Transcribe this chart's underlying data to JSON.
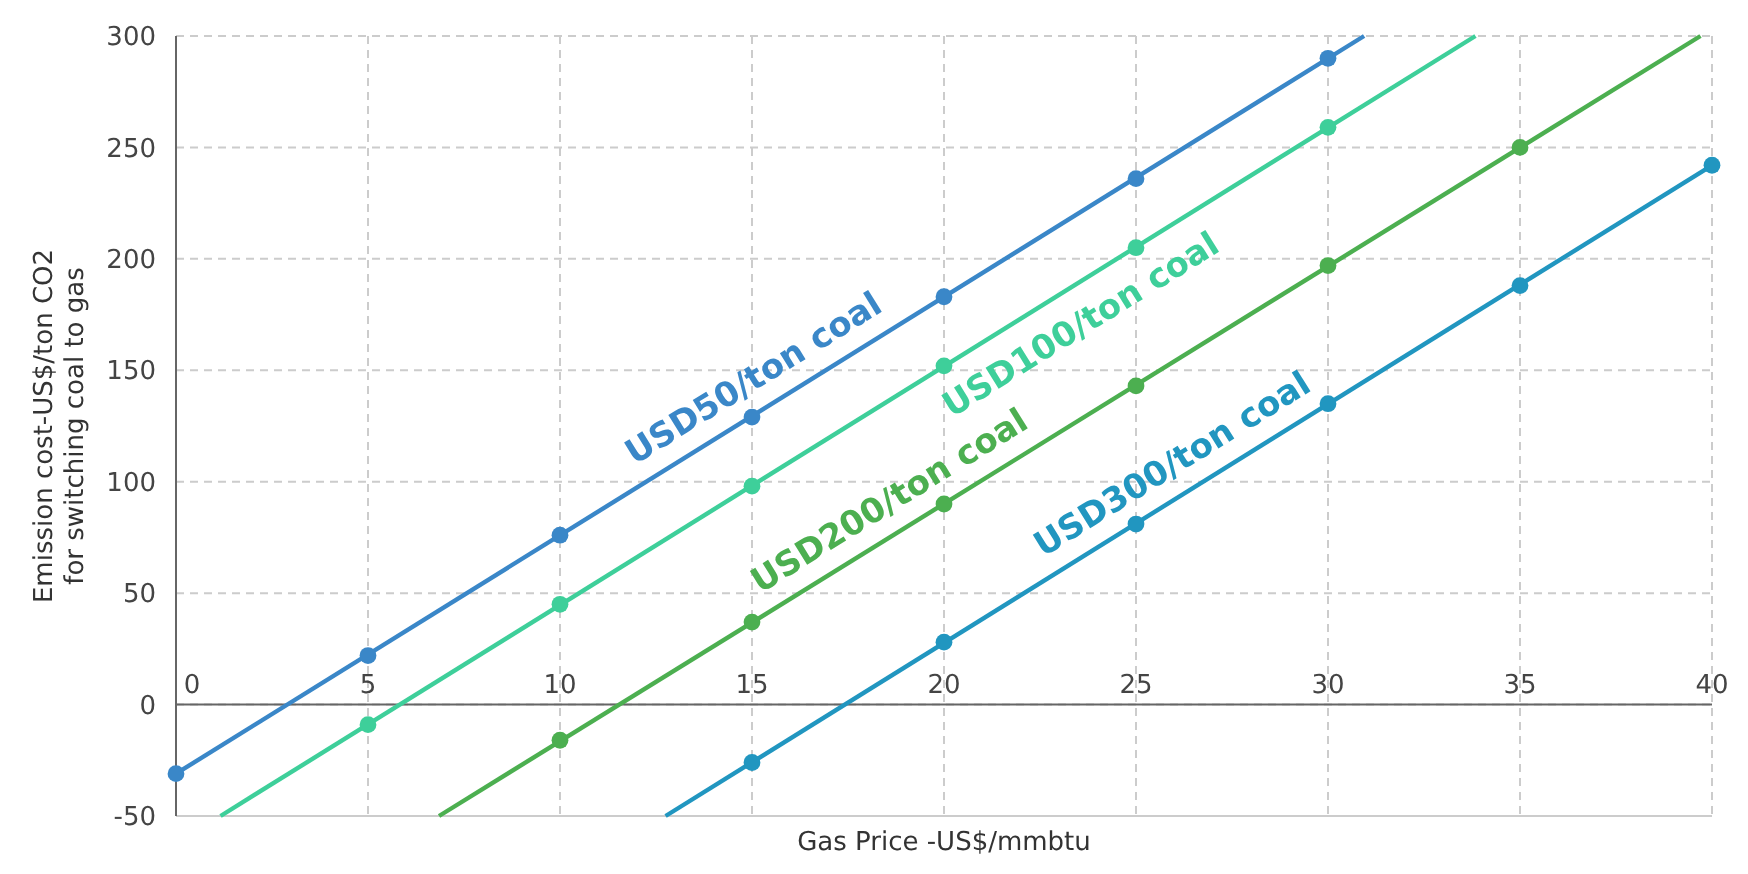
{
  "chart_data": {
    "type": "line",
    "xlabel": "Gas Price -US$/mmbtu",
    "ylabel": "Emission cost-US$/ton CO2\nfor switching coal to gas",
    "xlim": [
      0,
      40
    ],
    "ylim": [
      -50,
      300
    ],
    "xticks": [
      0,
      5,
      10,
      15,
      20,
      25,
      30,
      35,
      40
    ],
    "yticks": [
      -50,
      0,
      50,
      100,
      150,
      200,
      250,
      300
    ],
    "grid": true,
    "series": [
      {
        "name": "USD50/ton coal",
        "color": "#3a87c8",
        "x": [
          0,
          30.94
        ],
        "values": [
          -31,
          300
        ]
      },
      {
        "name": "USD100/ton coal",
        "color": "#3ecf9a",
        "x": [
          1.16,
          33.84
        ],
        "values": [
          -50,
          300
        ]
      },
      {
        "name": "USD200/ton coal",
        "color": "#4caf50",
        "x": [
          6.85,
          39.7
        ],
        "values": [
          -50,
          300
        ]
      },
      {
        "name": "USD300/ton coal",
        "color": "#2196c0",
        "x": [
          12.75,
          40
        ],
        "values": [
          -50,
          242
        ]
      },
      {
        "type": "scatter",
        "marker": "circle",
        "color": "#3a87c8",
        "x": [
          0,
          5,
          10,
          15,
          20,
          25,
          30
        ],
        "values": [
          -31,
          22,
          76,
          129,
          183,
          236,
          290
        ]
      },
      {
        "type": "scatter",
        "marker": "circle",
        "color": "#3ecf9a",
        "x": [
          5,
          10,
          15,
          20,
          25,
          30
        ],
        "values": [
          -9,
          45,
          98,
          152,
          205,
          259
        ]
      },
      {
        "type": "scatter",
        "marker": "circle",
        "color": "#4caf50",
        "x": [
          10,
          15,
          20,
          25,
          30,
          35
        ],
        "values": [
          -16,
          37,
          90,
          143,
          197,
          250
        ]
      },
      {
        "type": "scatter",
        "marker": "circle",
        "color": "#2196c0",
        "x": [
          15,
          20,
          25,
          30,
          35,
          40
        ],
        "values": [
          -26,
          28,
          81,
          135,
          188,
          242
        ]
      }
    ]
  }
}
